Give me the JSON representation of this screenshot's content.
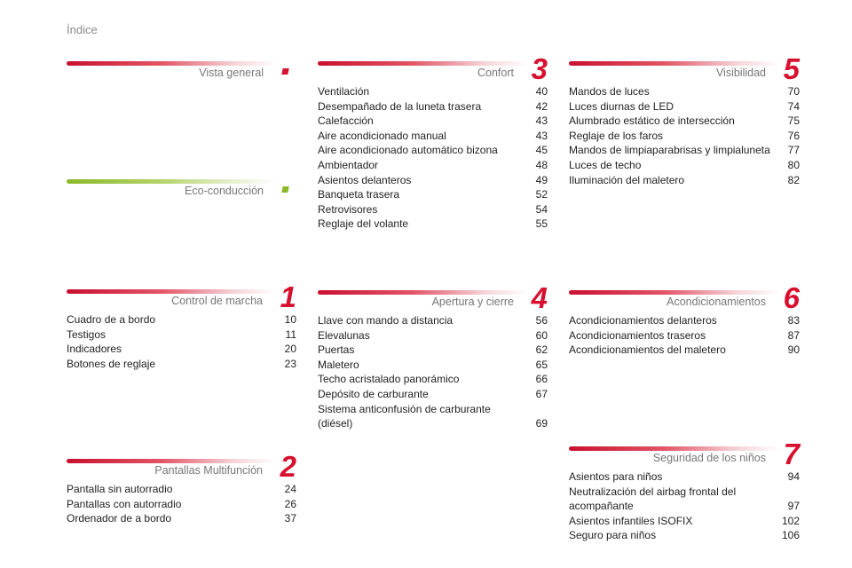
{
  "page_header": "Índice",
  "sections": {
    "vista_general": {
      "title": "Vista general",
      "entries": []
    },
    "eco": {
      "title": "Eco-conducción",
      "entries": []
    },
    "confort": {
      "title": "Confort",
      "number": "3",
      "entries": [
        {
          "label": "Ventilación",
          "page": "40"
        },
        {
          "label": "Desempañado de la luneta trasera",
          "page": "42"
        },
        {
          "label": "Calefacción",
          "page": "43"
        },
        {
          "label": "Aire acondicionado manual",
          "page": "43"
        },
        {
          "label": "Aire acondicionado automático bizona",
          "page": "45"
        },
        {
          "label": "Ambientador",
          "page": "48"
        },
        {
          "label": "Asientos delanteros",
          "page": "49"
        },
        {
          "label": "Banqueta trasera",
          "page": "52"
        },
        {
          "label": "Retrovisores",
          "page": "54"
        },
        {
          "label": "Reglaje del volante",
          "page": "55"
        }
      ]
    },
    "visibilidad": {
      "title": "Visibilidad",
      "number": "5",
      "entries": [
        {
          "label": "Mandos de luces",
          "page": "70"
        },
        {
          "label": "Luces diurnas de LED",
          "page": "74"
        },
        {
          "label": "Alumbrado estático de intersección",
          "page": "75"
        },
        {
          "label": "Reglaje de los faros",
          "page": "76"
        },
        {
          "label": "Mandos de limpiaparabrisas y limpialuneta",
          "page": "77"
        },
        {
          "label": "Luces de techo",
          "page": "80"
        },
        {
          "label": "Iluminación del maletero",
          "page": "82"
        }
      ]
    },
    "control": {
      "title": "Control de marcha",
      "number": "1",
      "entries": [
        {
          "label": "Cuadro de a bordo",
          "page": "10"
        },
        {
          "label": "Testigos",
          "page": "11"
        },
        {
          "label": "Indicadores",
          "page": "20"
        },
        {
          "label": "Botones de reglaje",
          "page": "23"
        }
      ]
    },
    "apertura": {
      "title": "Apertura y cierre",
      "number": "4",
      "entries": [
        {
          "label": "Llave con mando a distancia",
          "page": "56"
        },
        {
          "label": "Elevalunas",
          "page": "60"
        },
        {
          "label": "Puertas",
          "page": "62"
        },
        {
          "label": "Maletero",
          "page": "65"
        },
        {
          "label": "Techo acristalado panorámico",
          "page": "66"
        },
        {
          "label": "Depósito de carburante",
          "page": "67"
        },
        {
          "label": "Sistema anticonfusión de carburante\n   (diésel)",
          "page": "69"
        }
      ]
    },
    "acond": {
      "title": "Acondicionamientos",
      "number": "6",
      "entries": [
        {
          "label": "Acondicionamientos delanteros",
          "page": "83"
        },
        {
          "label": "Acondicionamientos traseros",
          "page": "87"
        },
        {
          "label": "Acondicionamientos del maletero",
          "page": "90"
        }
      ]
    },
    "pantallas": {
      "title": "Pantallas Multifunción",
      "number": "2",
      "entries": [
        {
          "label": "Pantalla sin autorradio",
          "page": "24"
        },
        {
          "label": "Pantallas con autorradio",
          "page": "26"
        },
        {
          "label": "Ordenador de a bordo",
          "page": "37"
        }
      ]
    },
    "seguridad": {
      "title": "Seguridad de los niños",
      "number": "7",
      "entries": [
        {
          "label": "Asientos para niños",
          "page": "94"
        },
        {
          "label": "Neutralización del airbag frontal del\n   acompañante",
          "page": "97"
        },
        {
          "label": "Asientos infantiles ISOFIX",
          "page": "102"
        },
        {
          "label": "Seguro para niños",
          "page": "106"
        }
      ]
    }
  }
}
